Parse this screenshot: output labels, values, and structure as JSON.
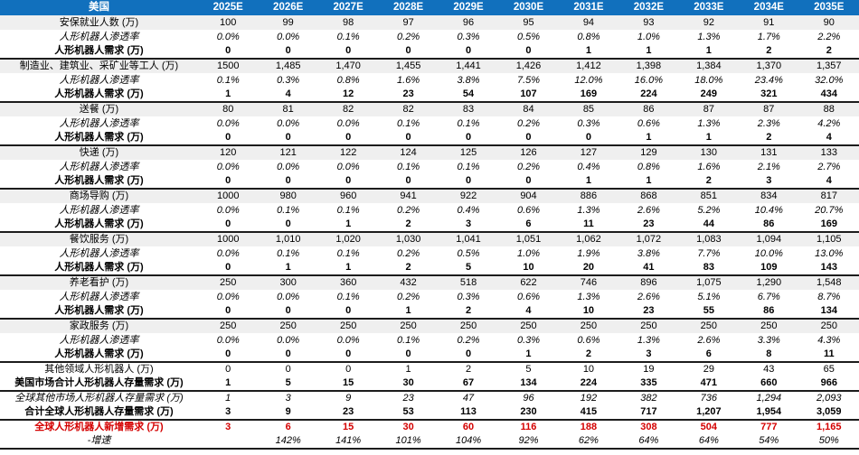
{
  "colors": {
    "header_bg": "#1170bd",
    "header_text": "#ffffff",
    "stripe_row_bg": "#efefef",
    "highlight_red": "#d40000",
    "section_border": "#1c1c1c"
  },
  "chart_data": {
    "type": "table",
    "title": "美国",
    "columns": [
      "2025E",
      "2026E",
      "2027E",
      "2028E",
      "2029E",
      "2030E",
      "2031E",
      "2032E",
      "2033E",
      "2034E",
      "2035E"
    ],
    "rows": [
      {
        "label": "安保就业人数 (万)",
        "style": "category",
        "sep": false,
        "values": [
          "100",
          "99",
          "98",
          "97",
          "96",
          "95",
          "94",
          "93",
          "92",
          "91",
          "90"
        ]
      },
      {
        "label": "人形机器人渗透率",
        "style": "penetration",
        "sep": false,
        "values": [
          "0.0%",
          "0.0%",
          "0.1%",
          "0.2%",
          "0.3%",
          "0.5%",
          "0.8%",
          "1.0%",
          "1.3%",
          "1.7%",
          "2.2%"
        ]
      },
      {
        "label": "人形机器人需求 (万)",
        "style": "demand",
        "sep": false,
        "values": [
          "0",
          "0",
          "0",
          "0",
          "0",
          "0",
          "1",
          "1",
          "1",
          "2",
          "2"
        ]
      },
      {
        "label": "制造业、建筑业、采矿业等工人 (万)",
        "style": "category",
        "sep": true,
        "values": [
          "1500",
          "1,485",
          "1,470",
          "1,455",
          "1,441",
          "1,426",
          "1,412",
          "1,398",
          "1,384",
          "1,370",
          "1,357"
        ]
      },
      {
        "label": "人形机器人渗透率",
        "style": "penetration",
        "sep": false,
        "values": [
          "0.1%",
          "0.3%",
          "0.8%",
          "1.6%",
          "3.8%",
          "7.5%",
          "12.0%",
          "16.0%",
          "18.0%",
          "23.4%",
          "32.0%"
        ]
      },
      {
        "label": "人形机器人需求 (万)",
        "style": "demand",
        "sep": false,
        "values": [
          "1",
          "4",
          "12",
          "23",
          "54",
          "107",
          "169",
          "224",
          "249",
          "321",
          "434"
        ]
      },
      {
        "label": "送餐 (万)",
        "style": "category",
        "sep": true,
        "values": [
          "80",
          "81",
          "82",
          "82",
          "83",
          "84",
          "85",
          "86",
          "87",
          "87",
          "88"
        ]
      },
      {
        "label": "人形机器人渗透率",
        "style": "penetration",
        "sep": false,
        "values": [
          "0.0%",
          "0.0%",
          "0.0%",
          "0.1%",
          "0.1%",
          "0.2%",
          "0.3%",
          "0.6%",
          "1.3%",
          "2.3%",
          "4.2%"
        ]
      },
      {
        "label": "人形机器人需求 (万)",
        "style": "demand",
        "sep": false,
        "values": [
          "0",
          "0",
          "0",
          "0",
          "0",
          "0",
          "0",
          "1",
          "1",
          "2",
          "4"
        ]
      },
      {
        "label": "快递 (万)",
        "style": "category",
        "sep": true,
        "values": [
          "120",
          "121",
          "122",
          "124",
          "125",
          "126",
          "127",
          "129",
          "130",
          "131",
          "133"
        ]
      },
      {
        "label": "人形机器人渗透率",
        "style": "penetration",
        "sep": false,
        "values": [
          "0.0%",
          "0.0%",
          "0.0%",
          "0.1%",
          "0.1%",
          "0.2%",
          "0.4%",
          "0.8%",
          "1.6%",
          "2.1%",
          "2.7%"
        ]
      },
      {
        "label": "人形机器人需求 (万)",
        "style": "demand",
        "sep": false,
        "values": [
          "0",
          "0",
          "0",
          "0",
          "0",
          "0",
          "1",
          "1",
          "2",
          "3",
          "4"
        ]
      },
      {
        "label": "商场导购 (万)",
        "style": "category",
        "sep": true,
        "values": [
          "1000",
          "980",
          "960",
          "941",
          "922",
          "904",
          "886",
          "868",
          "851",
          "834",
          "817"
        ]
      },
      {
        "label": "人形机器人渗透率",
        "style": "penetration",
        "sep": false,
        "values": [
          "0.0%",
          "0.1%",
          "0.1%",
          "0.2%",
          "0.4%",
          "0.6%",
          "1.3%",
          "2.6%",
          "5.2%",
          "10.4%",
          "20.7%"
        ]
      },
      {
        "label": "人形机器人需求 (万)",
        "style": "demand",
        "sep": false,
        "values": [
          "0",
          "0",
          "1",
          "2",
          "3",
          "6",
          "11",
          "23",
          "44",
          "86",
          "169"
        ]
      },
      {
        "label": "餐饮服务 (万)",
        "style": "category",
        "sep": true,
        "values": [
          "1000",
          "1,010",
          "1,020",
          "1,030",
          "1,041",
          "1,051",
          "1,062",
          "1,072",
          "1,083",
          "1,094",
          "1,105"
        ]
      },
      {
        "label": "人形机器人渗透率",
        "style": "penetration",
        "sep": false,
        "values": [
          "0.0%",
          "0.1%",
          "0.1%",
          "0.2%",
          "0.5%",
          "1.0%",
          "1.9%",
          "3.8%",
          "7.7%",
          "10.0%",
          "13.0%"
        ]
      },
      {
        "label": "人形机器人需求 (万)",
        "style": "demand",
        "sep": false,
        "values": [
          "0",
          "1",
          "1",
          "2",
          "5",
          "10",
          "20",
          "41",
          "83",
          "109",
          "143"
        ]
      },
      {
        "label": "养老看护 (万)",
        "style": "category",
        "sep": true,
        "values": [
          "250",
          "300",
          "360",
          "432",
          "518",
          "622",
          "746",
          "896",
          "1,075",
          "1,290",
          "1,548"
        ]
      },
      {
        "label": "人形机器人渗透率",
        "style": "penetration",
        "sep": false,
        "values": [
          "0.0%",
          "0.0%",
          "0.1%",
          "0.2%",
          "0.3%",
          "0.6%",
          "1.3%",
          "2.6%",
          "5.1%",
          "6.7%",
          "8.7%"
        ]
      },
      {
        "label": "人形机器人需求 (万)",
        "style": "demand",
        "sep": false,
        "values": [
          "0",
          "0",
          "0",
          "1",
          "2",
          "4",
          "10",
          "23",
          "55",
          "86",
          "134"
        ]
      },
      {
        "label": "家政服务 (万)",
        "style": "category",
        "sep": true,
        "values": [
          "250",
          "250",
          "250",
          "250",
          "250",
          "250",
          "250",
          "250",
          "250",
          "250",
          "250"
        ]
      },
      {
        "label": "人形机器人渗透率",
        "style": "penetration",
        "sep": false,
        "values": [
          "0.0%",
          "0.0%",
          "0.0%",
          "0.1%",
          "0.2%",
          "0.3%",
          "0.6%",
          "1.3%",
          "2.6%",
          "3.3%",
          "4.3%"
        ]
      },
      {
        "label": "人形机器人需求 (万)",
        "style": "demand",
        "sep": false,
        "values": [
          "0",
          "0",
          "0",
          "0",
          "0",
          "1",
          "2",
          "3",
          "6",
          "8",
          "11"
        ]
      },
      {
        "label": "其他领域人形机器人 (万)",
        "style": "plain",
        "sep": true,
        "values": [
          "0",
          "0",
          "0",
          "1",
          "2",
          "5",
          "10",
          "19",
          "29",
          "43",
          "65"
        ]
      },
      {
        "label": "美国市场合计人形机器人存量需求 (万)",
        "style": "total",
        "sep": false,
        "values": [
          "1",
          "5",
          "15",
          "30",
          "67",
          "134",
          "224",
          "335",
          "471",
          "660",
          "966"
        ]
      },
      {
        "label": "全球其他市场人形机器人存量需求 (万)",
        "style": "italic",
        "sep": true,
        "values": [
          "1",
          "3",
          "9",
          "23",
          "47",
          "96",
          "192",
          "382",
          "736",
          "1,294",
          "2,093"
        ]
      },
      {
        "label": "合计全球人形机器人存量需求 (万)",
        "style": "total",
        "sep": false,
        "values": [
          "3",
          "9",
          "23",
          "53",
          "113",
          "230",
          "415",
          "717",
          "1,207",
          "1,954",
          "3,059"
        ]
      },
      {
        "label": "全球人形机器人新增需求 (万)",
        "style": "red",
        "sep": true,
        "values": [
          "3",
          "6",
          "15",
          "30",
          "60",
          "116",
          "188",
          "308",
          "504",
          "777",
          "1,165"
        ]
      },
      {
        "label": "-增速",
        "style": "growth",
        "sep": false,
        "bottom": true,
        "values": [
          "",
          "142%",
          "141%",
          "101%",
          "104%",
          "92%",
          "62%",
          "64%",
          "64%",
          "54%",
          "50%"
        ]
      }
    ]
  }
}
